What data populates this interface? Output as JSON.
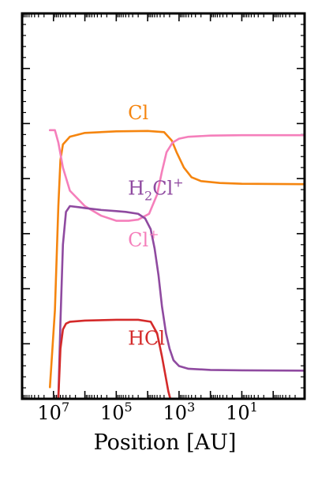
{
  "chart_data": {
    "type": "line",
    "title": "",
    "xlabel": "Position [AU]",
    "ylabel": "",
    "x_scale": "log",
    "x_reversed": true,
    "xlim": [
      100000000,
      0.1
    ],
    "ylim": [
      0,
      1
    ],
    "y_tick_labels_shown": false,
    "grid": false,
    "legend": "none",
    "x_tick_labels": [
      {
        "base": "10",
        "exp": "7",
        "value": 10000000
      },
      {
        "base": "10",
        "exp": "5",
        "value": 100000
      },
      {
        "base": "10",
        "exp": "3",
        "value": 1000
      },
      {
        "base": "10",
        "exp": "1",
        "value": 10
      }
    ],
    "series": [
      {
        "name": "Cl",
        "color": "#f5850f",
        "label_parts": [
          {
            "text": "Cl",
            "kind": "normal"
          }
        ],
        "label_at": [
          10000,
          0.725
        ],
        "points": [
          [
            13000000,
            0.03
          ],
          [
            9000000,
            0.23
          ],
          [
            7000000,
            0.5
          ],
          [
            6000000,
            0.62
          ],
          [
            5000000,
            0.66
          ],
          [
            3000000,
            0.68
          ],
          [
            1000000,
            0.69
          ],
          [
            100000,
            0.694
          ],
          [
            10000,
            0.695
          ],
          [
            3000,
            0.692
          ],
          [
            1700,
            0.67
          ],
          [
            1200,
            0.64
          ],
          [
            700,
            0.6
          ],
          [
            400,
            0.575
          ],
          [
            200,
            0.565
          ],
          [
            50,
            0.56
          ],
          [
            10,
            0.558
          ],
          [
            0.1,
            0.557
          ]
        ]
      },
      {
        "name": "Cl+",
        "color": "#f57fbb",
        "label_parts": [
          {
            "text": "Cl",
            "kind": "normal"
          },
          {
            "text": "+",
            "kind": "sup"
          }
        ],
        "label_at": [
          10000,
          0.395
        ],
        "points": [
          [
            13000000,
            0.697
          ],
          [
            9000000,
            0.697
          ],
          [
            7000000,
            0.665
          ],
          [
            5000000,
            0.6
          ],
          [
            3000000,
            0.54
          ],
          [
            1000000,
            0.5
          ],
          [
            300000,
            0.475
          ],
          [
            100000,
            0.462
          ],
          [
            40000,
            0.462
          ],
          [
            20000,
            0.465
          ],
          [
            9000,
            0.48
          ],
          [
            5000,
            0.53
          ],
          [
            3500,
            0.59
          ],
          [
            2500,
            0.64
          ],
          [
            1600,
            0.665
          ],
          [
            1000,
            0.675
          ],
          [
            500,
            0.68
          ],
          [
            100,
            0.683
          ],
          [
            10,
            0.684
          ],
          [
            0.1,
            0.684
          ]
        ]
      },
      {
        "name": "H2Cl+",
        "color": "#8f4aa0",
        "label_parts": [
          {
            "text": "H",
            "kind": "normal"
          },
          {
            "text": "2",
            "kind": "sub"
          },
          {
            "text": "Cl",
            "kind": "normal"
          },
          {
            "text": "+",
            "kind": "sup"
          }
        ],
        "label_at": [
          10000,
          0.53
        ],
        "points": [
          [
            7000000,
            0.0
          ],
          [
            6000000,
            0.2
          ],
          [
            5000000,
            0.4
          ],
          [
            4000000,
            0.485
          ],
          [
            3000000,
            0.5
          ],
          [
            1500000,
            0.497
          ],
          [
            1000000,
            0.495
          ],
          [
            300000,
            0.49
          ],
          [
            100000,
            0.487
          ],
          [
            50000,
            0.485
          ],
          [
            20000,
            0.48
          ],
          [
            12000,
            0.468
          ],
          [
            8000,
            0.44
          ],
          [
            6000,
            0.39
          ],
          [
            4500,
            0.32
          ],
          [
            3500,
            0.24
          ],
          [
            2600,
            0.17
          ],
          [
            2000,
            0.13
          ],
          [
            1500,
            0.1
          ],
          [
            1000,
            0.085
          ],
          [
            500,
            0.078
          ],
          [
            100,
            0.075
          ],
          [
            10,
            0.074
          ],
          [
            0.1,
            0.073
          ]
        ]
      },
      {
        "name": "HCl",
        "color": "#d42a2a",
        "label_parts": [
          {
            "text": "HCl",
            "kind": "normal"
          }
        ],
        "label_at": [
          10000,
          0.14
        ],
        "points": [
          [
            7000000,
            0.0
          ],
          [
            6000000,
            0.13
          ],
          [
            5000000,
            0.18
          ],
          [
            4000000,
            0.195
          ],
          [
            3000000,
            0.2
          ],
          [
            1000000,
            0.203
          ],
          [
            100000,
            0.205
          ],
          [
            20000,
            0.205
          ],
          [
            8000,
            0.2
          ],
          [
            5000,
            0.17
          ],
          [
            3500,
            0.11
          ],
          [
            2700,
            0.06
          ],
          [
            2200,
            0.02
          ],
          [
            1900,
            0.0
          ]
        ]
      }
    ]
  }
}
